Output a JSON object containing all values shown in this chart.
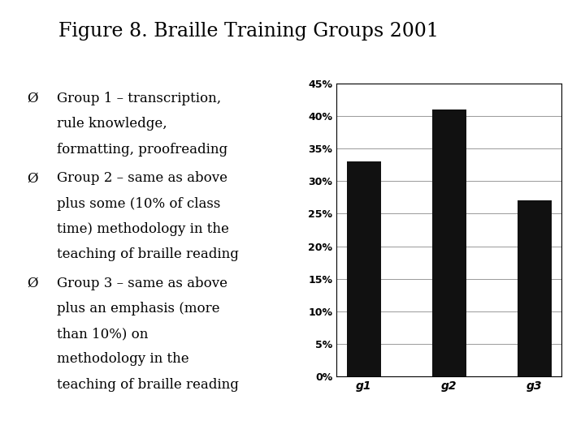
{
  "title": "Figure 8. Braille Training Groups 2001",
  "title_fontsize": 17,
  "title_font": "serif",
  "categories": [
    "g1",
    "g2",
    "g3"
  ],
  "values": [
    0.33,
    0.41,
    0.27
  ],
  "bar_color": "#111111",
  "bar_width": 0.4,
  "ylim": [
    0,
    0.45
  ],
  "yticks": [
    0.0,
    0.05,
    0.1,
    0.15,
    0.2,
    0.25,
    0.3,
    0.35,
    0.4,
    0.45
  ],
  "ytick_labels": [
    "0%",
    "5%",
    "10%",
    "15%",
    "20%",
    "25%",
    "30%",
    "35%",
    "40%",
    "45%"
  ],
  "background_color": "#ffffff",
  "text_items": [
    {
      "lines": [
        "Group 1 – transcription,",
        "rule knowledge,",
        "formatting, proofreading"
      ]
    },
    {
      "lines": [
        "Group 2 – same as above",
        "plus some (10% of class",
        "time) methodology in the",
        "teaching of braille reading"
      ]
    },
    {
      "lines": [
        "Group 3 – same as above",
        "plus an emphasis (more",
        "than 10%) on",
        "methodology in the",
        "teaching of braille reading"
      ]
    }
  ],
  "text_fontsize": 12,
  "text_font": "serif",
  "bullet_char": "Ø",
  "grid_color": "#999999",
  "tick_fontsize": 9,
  "tick_font": "sans-serif"
}
